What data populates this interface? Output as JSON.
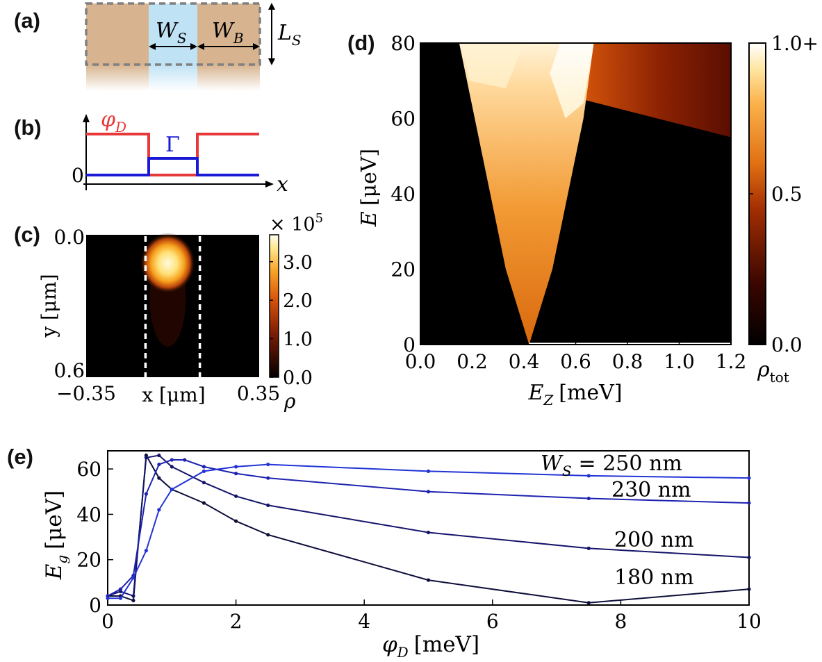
{
  "panel_labels": {
    "a": "(a)",
    "b": "(b)",
    "c": "(c)",
    "d": "(d)",
    "e": "(e)"
  },
  "panel_a": {
    "ws_label": "W",
    "ws_sub": "S",
    "wb_label": "W",
    "wb_sub": "B",
    "ls_label": "L",
    "ls_sub": "S",
    "colors": {
      "superconductor": "#d7b48f",
      "barrier": "#bfe2f5",
      "outline": "#808080"
    }
  },
  "panel_b": {
    "phi_label": "φ",
    "phi_sub": "D",
    "gamma_label": "Γ",
    "zero_label": "0",
    "x_label": "x",
    "colors": {
      "phi": "#e8393a",
      "gamma": "#1a1ad6"
    }
  },
  "chart_data": [
    {
      "id": "c",
      "type": "heatmap",
      "description_values": "single bright density blob",
      "x_ticks": [
        "−0.35",
        "0.35"
      ],
      "x_range": [
        -0.35,
        0.35
      ],
      "xlabel": "x [μm]",
      "y_ticks": [
        "0.0",
        "0.6"
      ],
      "y_range": [
        0.0,
        0.6
      ],
      "ylabel": "y [μm]",
      "colorbar": {
        "ticks": [
          "0.0",
          "1.0",
          "2.0",
          "3.0"
        ],
        "scale": "× 10",
        "scale_exp": "5",
        "label": "ρ",
        "range": [
          0,
          3.7
        ]
      },
      "blob": {
        "x": -0.02,
        "y": 0.12,
        "peak": 3.7
      },
      "barrier_lines_x": [
        -0.11,
        0.11
      ]
    },
    {
      "id": "d",
      "type": "heatmap",
      "xlabel": "E",
      "xlabel_sub": "Z",
      "xlabel_unit": "[meV]",
      "ylabel": "E",
      "ylabel_unit": "[μeV]",
      "x_ticks": [
        "0.0",
        "0.2",
        "0.4",
        "0.6",
        "0.8",
        "1.0",
        "1.2"
      ],
      "x_range": [
        0.0,
        1.2
      ],
      "y_ticks": [
        "0",
        "20",
        "40",
        "60",
        "80"
      ],
      "y_range": [
        0,
        80
      ],
      "colorbar": {
        "ticks": [
          "0.0",
          "0.5",
          "1.0+"
        ],
        "label": "ρ",
        "label_sub": "tot",
        "range": [
          0,
          1
        ]
      },
      "gap_closing_EZ": 0.42,
      "left_edge": [
        [
          0.42,
          0
        ],
        [
          0.33,
          20
        ],
        [
          0.27,
          40
        ],
        [
          0.21,
          60
        ],
        [
          0.15,
          80
        ]
      ],
      "right_edge": [
        [
          0.42,
          0
        ],
        [
          0.51,
          20
        ],
        [
          0.57,
          40
        ],
        [
          0.63,
          60
        ],
        [
          0.67,
          80
        ]
      ],
      "upper_band_edge": [
        [
          0.63,
          65
        ],
        [
          1.2,
          55
        ]
      ]
    },
    {
      "id": "e",
      "type": "line",
      "xlabel": "φ",
      "xlabel_sub": "D",
      "xlabel_unit": "[meV]",
      "ylabel": "E",
      "ylabel_sub": "g",
      "ylabel_unit": "[μeV]",
      "x_range": [
        0,
        10
      ],
      "y_range": [
        0,
        68
      ],
      "x_ticks": [
        "0",
        "2",
        "4",
        "6",
        "8",
        "10"
      ],
      "y_ticks": [
        "0",
        "20",
        "40",
        "60"
      ],
      "series": [
        {
          "name": "180 nm",
          "label_text": "180 nm",
          "color": "#0d0d3a",
          "x": [
            0,
            0.2,
            0.4,
            0.6,
            0.8,
            1.0,
            1.5,
            2.0,
            2.5,
            5.0,
            7.5,
            10.0
          ],
          "y": [
            4,
            4,
            2,
            66,
            56,
            51,
            45,
            37,
            31,
            11,
            1,
            7
          ]
        },
        {
          "name": "200 nm",
          "label_text": "200 nm",
          "color": "#14146b",
          "x": [
            0,
            0.2,
            0.4,
            0.6,
            0.8,
            1.0,
            1.5,
            2.0,
            2.5,
            5.0,
            7.5,
            10.0
          ],
          "y": [
            4,
            6,
            4,
            65,
            66,
            61,
            54,
            48,
            44,
            32,
            25,
            21
          ]
        },
        {
          "name": "230 nm",
          "label_text": "230 nm",
          "color": "#1e22b0",
          "x": [
            0,
            0.2,
            0.4,
            0.6,
            0.8,
            1.0,
            1.2,
            1.5,
            2.0,
            2.5,
            5.0,
            7.5,
            10.0
          ],
          "y": [
            4,
            7,
            13,
            49,
            62,
            64,
            64,
            61,
            58,
            56,
            50,
            47,
            45
          ]
        },
        {
          "name": "250 nm",
          "label_text": "W_S = 250 nm",
          "color": "#2233d6",
          "x": [
            0,
            0.2,
            0.4,
            0.6,
            0.8,
            1.0,
            1.5,
            2.0,
            2.5,
            5.0,
            7.5,
            10.0
          ],
          "y": [
            3,
            3,
            12,
            24,
            42,
            51,
            59,
            61,
            62,
            59,
            57,
            56
          ]
        }
      ],
      "legend_prefix": "W",
      "legend_prefix_sub": "S",
      "legend_eq": "= 250 nm"
    }
  ]
}
